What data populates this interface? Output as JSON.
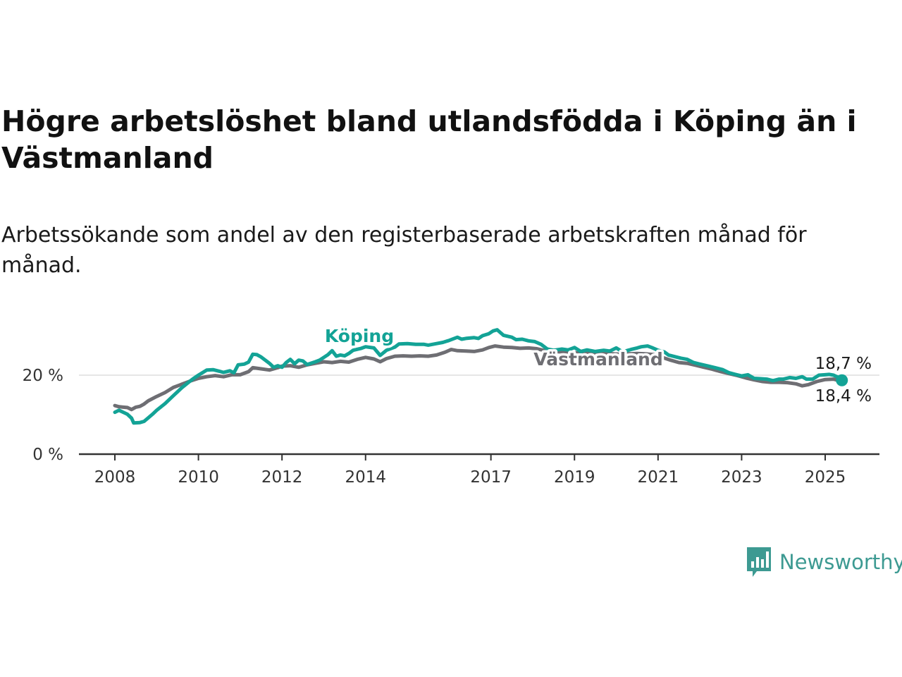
{
  "title": "Högre arbetslöshet bland utlandsfödda i Köping än i Västmanland",
  "subtitle": "Arbetssökande som andel av den registerbaserade arbetskraften månad för månad.",
  "brand": {
    "name": "Newsworthy",
    "color": "#3d9a92"
  },
  "colors": {
    "koping": "#13a396",
    "vastmanland": "#6e6e73",
    "axis": "#333333",
    "grid": "#dddddd"
  },
  "chart_data": {
    "type": "line",
    "title": "Högre arbetslöshet bland utlandsfödda i Köping än i Västmanland",
    "subtitle": "Arbetssökande som andel av den registerbaserade arbetskraften månad för månad.",
    "xlabel": "",
    "ylabel": "",
    "x_range": [
      2007.8,
      2026.1
    ],
    "ylim": [
      0,
      33
    ],
    "x_ticks": [
      {
        "value": 2008,
        "label": "2008"
      },
      {
        "value": 2010,
        "label": "2010"
      },
      {
        "value": 2012,
        "label": "2012"
      },
      {
        "value": 2014,
        "label": "2014"
      },
      {
        "value": 2017,
        "label": "2017"
      },
      {
        "value": 2019,
        "label": "2019"
      },
      {
        "value": 2021,
        "label": "2021"
      },
      {
        "value": 2023,
        "label": "2023"
      },
      {
        "value": 2025,
        "label": "2025"
      }
    ],
    "y_ticks": [
      {
        "value": 0,
        "label": "0 %"
      },
      {
        "value": 20,
        "label": "20 %"
      }
    ],
    "grid": "horizontal at 20 %",
    "series": [
      {
        "key": "koping",
        "name": "Köping",
        "color": "#13a396",
        "end_label": "18,7 %",
        "points": [
          [
            2008.0,
            10.6
          ],
          [
            2008.1,
            11.1
          ],
          [
            2008.2,
            10.6
          ],
          [
            2008.3,
            10.1
          ],
          [
            2008.4,
            9.1
          ],
          [
            2008.45,
            7.9
          ],
          [
            2008.6,
            8.0
          ],
          [
            2008.7,
            8.3
          ],
          [
            2008.8,
            9.2
          ],
          [
            2008.9,
            10.1
          ],
          [
            2009.0,
            11.1
          ],
          [
            2009.2,
            12.8
          ],
          [
            2009.4,
            14.8
          ],
          [
            2009.6,
            16.8
          ],
          [
            2009.8,
            18.5
          ],
          [
            2009.9,
            19.3
          ],
          [
            2010.0,
            20.0
          ],
          [
            2010.2,
            21.3
          ],
          [
            2010.35,
            21.4
          ],
          [
            2010.5,
            21.0
          ],
          [
            2010.6,
            20.7
          ],
          [
            2010.75,
            21.1
          ],
          [
            2010.85,
            20.6
          ],
          [
            2010.95,
            22.6
          ],
          [
            2011.1,
            22.8
          ],
          [
            2011.2,
            23.3
          ],
          [
            2011.3,
            25.3
          ],
          [
            2011.4,
            25.2
          ],
          [
            2011.5,
            24.6
          ],
          [
            2011.6,
            23.8
          ],
          [
            2011.7,
            23.0
          ],
          [
            2011.8,
            22.0
          ],
          [
            2011.9,
            22.4
          ],
          [
            2012.0,
            22.0
          ],
          [
            2012.1,
            23.2
          ],
          [
            2012.2,
            24.0
          ],
          [
            2012.3,
            22.9
          ],
          [
            2012.4,
            23.8
          ],
          [
            2012.5,
            23.6
          ],
          [
            2012.6,
            22.7
          ],
          [
            2012.8,
            23.4
          ],
          [
            2012.9,
            23.8
          ],
          [
            2013.0,
            24.5
          ],
          [
            2013.1,
            25.2
          ],
          [
            2013.2,
            26.2
          ],
          [
            2013.3,
            24.8
          ],
          [
            2013.4,
            25.1
          ],
          [
            2013.5,
            24.9
          ],
          [
            2013.6,
            25.5
          ],
          [
            2013.7,
            26.3
          ],
          [
            2013.9,
            26.8
          ],
          [
            2014.0,
            27.2
          ],
          [
            2014.2,
            26.9
          ],
          [
            2014.35,
            25.0
          ],
          [
            2014.5,
            26.3
          ],
          [
            2014.7,
            27.1
          ],
          [
            2014.8,
            27.9
          ],
          [
            2015.0,
            28.0
          ],
          [
            2015.2,
            27.8
          ],
          [
            2015.4,
            27.8
          ],
          [
            2015.5,
            27.6
          ],
          [
            2015.7,
            28.0
          ],
          [
            2015.85,
            28.3
          ],
          [
            2016.0,
            28.8
          ],
          [
            2016.2,
            29.6
          ],
          [
            2016.3,
            29.1
          ],
          [
            2016.4,
            29.3
          ],
          [
            2016.6,
            29.5
          ],
          [
            2016.7,
            29.3
          ],
          [
            2016.8,
            30.0
          ],
          [
            2016.95,
            30.5
          ],
          [
            2017.05,
            31.2
          ],
          [
            2017.15,
            31.5
          ],
          [
            2017.3,
            30.1
          ],
          [
            2017.5,
            29.6
          ],
          [
            2017.6,
            29.0
          ],
          [
            2017.75,
            29.1
          ],
          [
            2017.9,
            28.7
          ],
          [
            2018.05,
            28.5
          ],
          [
            2018.2,
            27.8
          ],
          [
            2018.35,
            26.6
          ],
          [
            2018.5,
            26.3
          ],
          [
            2018.7,
            26.6
          ],
          [
            2018.85,
            26.4
          ],
          [
            2019.0,
            27.0
          ],
          [
            2019.15,
            26.0
          ],
          [
            2019.3,
            26.4
          ],
          [
            2019.5,
            26.0
          ],
          [
            2019.7,
            26.3
          ],
          [
            2019.85,
            26.1
          ],
          [
            2020.0,
            26.9
          ],
          [
            2020.15,
            25.9
          ],
          [
            2020.35,
            26.5
          ],
          [
            2020.5,
            26.9
          ],
          [
            2020.6,
            27.2
          ],
          [
            2020.75,
            27.4
          ],
          [
            2020.85,
            27.0
          ],
          [
            2021.0,
            26.3
          ],
          [
            2021.15,
            25.9
          ],
          [
            2021.25,
            25.1
          ],
          [
            2021.4,
            24.7
          ],
          [
            2021.55,
            24.3
          ],
          [
            2021.7,
            24.0
          ],
          [
            2021.85,
            23.2
          ],
          [
            2022.0,
            22.8
          ],
          [
            2022.2,
            22.3
          ],
          [
            2022.4,
            21.8
          ],
          [
            2022.55,
            21.4
          ],
          [
            2022.7,
            20.6
          ],
          [
            2022.85,
            20.2
          ],
          [
            2023.0,
            19.8
          ],
          [
            2023.15,
            20.1
          ],
          [
            2023.3,
            19.2
          ],
          [
            2023.45,
            19.1
          ],
          [
            2023.6,
            19.0
          ],
          [
            2023.75,
            18.6
          ],
          [
            2023.9,
            19.0
          ],
          [
            2024.0,
            19.0
          ],
          [
            2024.15,
            19.4
          ],
          [
            2024.3,
            19.2
          ],
          [
            2024.45,
            19.6
          ],
          [
            2024.55,
            19.0
          ],
          [
            2024.7,
            19.0
          ],
          [
            2024.85,
            20.0
          ],
          [
            2025.0,
            20.1
          ],
          [
            2025.1,
            20.2
          ],
          [
            2025.2,
            20.0
          ],
          [
            2025.3,
            19.5
          ],
          [
            2025.4,
            18.7
          ]
        ]
      },
      {
        "key": "vastmanland",
        "name": "Västmanland",
        "color": "#6e6e73",
        "end_label": "18,4 %",
        "points": [
          [
            2008.0,
            12.3
          ],
          [
            2008.1,
            12.0
          ],
          [
            2008.2,
            11.9
          ],
          [
            2008.3,
            11.8
          ],
          [
            2008.4,
            11.3
          ],
          [
            2008.5,
            11.9
          ],
          [
            2008.6,
            12.1
          ],
          [
            2008.7,
            12.7
          ],
          [
            2008.8,
            13.5
          ],
          [
            2009.0,
            14.6
          ],
          [
            2009.2,
            15.6
          ],
          [
            2009.4,
            16.9
          ],
          [
            2009.6,
            17.7
          ],
          [
            2009.8,
            18.5
          ],
          [
            2010.0,
            19.2
          ],
          [
            2010.2,
            19.6
          ],
          [
            2010.4,
            19.9
          ],
          [
            2010.6,
            19.6
          ],
          [
            2010.8,
            20.1
          ],
          [
            2011.0,
            20.1
          ],
          [
            2011.2,
            20.9
          ],
          [
            2011.3,
            21.9
          ],
          [
            2011.5,
            21.6
          ],
          [
            2011.7,
            21.3
          ],
          [
            2011.9,
            21.9
          ],
          [
            2012.0,
            22.3
          ],
          [
            2012.2,
            22.4
          ],
          [
            2012.4,
            22.0
          ],
          [
            2012.6,
            22.6
          ],
          [
            2012.8,
            23.0
          ],
          [
            2013.0,
            23.4
          ],
          [
            2013.2,
            23.2
          ],
          [
            2013.4,
            23.5
          ],
          [
            2013.6,
            23.3
          ],
          [
            2013.8,
            24.0
          ],
          [
            2014.0,
            24.5
          ],
          [
            2014.2,
            24.1
          ],
          [
            2014.35,
            23.4
          ],
          [
            2014.5,
            24.2
          ],
          [
            2014.7,
            24.8
          ],
          [
            2014.9,
            24.9
          ],
          [
            2015.1,
            24.8
          ],
          [
            2015.3,
            24.9
          ],
          [
            2015.5,
            24.8
          ],
          [
            2015.7,
            25.1
          ],
          [
            2015.9,
            25.8
          ],
          [
            2016.05,
            26.5
          ],
          [
            2016.2,
            26.2
          ],
          [
            2016.4,
            26.1
          ],
          [
            2016.6,
            26.0
          ],
          [
            2016.8,
            26.4
          ],
          [
            2016.95,
            27.0
          ],
          [
            2017.1,
            27.4
          ],
          [
            2017.3,
            27.1
          ],
          [
            2017.5,
            27.0
          ],
          [
            2017.7,
            26.8
          ],
          [
            2017.9,
            26.9
          ],
          [
            2018.1,
            26.7
          ],
          [
            2018.3,
            26.2
          ],
          [
            2018.5,
            26.0
          ],
          [
            2018.7,
            25.9
          ],
          [
            2018.9,
            25.8
          ],
          [
            2019.1,
            25.6
          ],
          [
            2019.3,
            25.7
          ],
          [
            2019.5,
            25.4
          ],
          [
            2019.7,
            25.5
          ],
          [
            2019.9,
            25.4
          ],
          [
            2020.1,
            25.3
          ],
          [
            2020.3,
            25.4
          ],
          [
            2020.5,
            25.5
          ],
          [
            2020.7,
            25.4
          ],
          [
            2020.9,
            25.2
          ],
          [
            2021.1,
            24.5
          ],
          [
            2021.3,
            23.8
          ],
          [
            2021.5,
            23.2
          ],
          [
            2021.7,
            23.0
          ],
          [
            2021.9,
            22.5
          ],
          [
            2022.1,
            22.0
          ],
          [
            2022.3,
            21.5
          ],
          [
            2022.5,
            20.9
          ],
          [
            2022.7,
            20.4
          ],
          [
            2022.9,
            19.9
          ],
          [
            2023.1,
            19.3
          ],
          [
            2023.3,
            18.8
          ],
          [
            2023.5,
            18.4
          ],
          [
            2023.7,
            18.2
          ],
          [
            2023.9,
            18.2
          ],
          [
            2024.1,
            18.1
          ],
          [
            2024.3,
            17.8
          ],
          [
            2024.45,
            17.3
          ],
          [
            2024.6,
            17.6
          ],
          [
            2024.8,
            18.4
          ],
          [
            2025.0,
            18.9
          ],
          [
            2025.2,
            19.0
          ],
          [
            2025.4,
            18.4
          ]
        ]
      }
    ]
  }
}
